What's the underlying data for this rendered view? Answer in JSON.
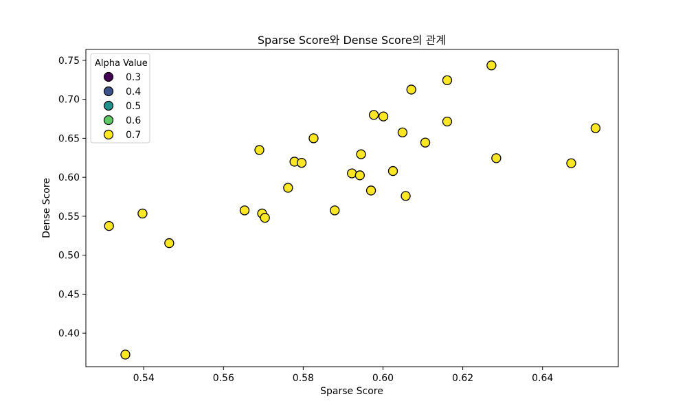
{
  "chart_data": {
    "type": "scatter",
    "title": "Sparse Score와 Dense Score의 관계",
    "xlabel": "Sparse Score",
    "ylabel": "Dense Score",
    "xlim": [
      0.5255,
      0.659
    ],
    "ylim": [
      0.357,
      0.764
    ],
    "xticks": [
      0.54,
      0.56,
      0.58,
      0.6,
      0.62,
      0.64
    ],
    "xtick_labels": [
      "0.54",
      "0.56",
      "0.58",
      "0.60",
      "0.62",
      "0.64"
    ],
    "yticks": [
      0.4,
      0.45,
      0.5,
      0.55,
      0.6,
      0.65,
      0.7,
      0.75
    ],
    "ytick_labels": [
      "0.40",
      "0.45",
      "0.50",
      "0.55",
      "0.60",
      "0.65",
      "0.70",
      "0.75"
    ],
    "grid": false,
    "legend": {
      "title": "Alpha Value",
      "placement": "top-left",
      "entries": [
        {
          "label": "0.3",
          "color": "#440154"
        },
        {
          "label": "0.4",
          "color": "#3b528b"
        },
        {
          "label": "0.5",
          "color": "#21918c"
        },
        {
          "label": "0.6",
          "color": "#5ec962"
        },
        {
          "label": "0.7",
          "color": "#fde725"
        }
      ]
    },
    "series": [
      {
        "name": "0.7",
        "color": "#fde725",
        "points": [
          [
            0.5313,
            0.5375
          ],
          [
            0.5354,
            0.3725
          ],
          [
            0.5397,
            0.5535
          ],
          [
            0.5464,
            0.5155
          ],
          [
            0.5653,
            0.5575
          ],
          [
            0.569,
            0.635
          ],
          [
            0.5697,
            0.5535
          ],
          [
            0.5704,
            0.548
          ],
          [
            0.5762,
            0.5865
          ],
          [
            0.5778,
            0.62
          ],
          [
            0.5796,
            0.6185
          ],
          [
            0.5826,
            0.65
          ],
          [
            0.5879,
            0.5575
          ],
          [
            0.5922,
            0.605
          ],
          [
            0.5942,
            0.6025
          ],
          [
            0.5945,
            0.6295
          ],
          [
            0.597,
            0.583
          ],
          [
            0.5977,
            0.68
          ],
          [
            0.6001,
            0.678
          ],
          [
            0.6025,
            0.608
          ],
          [
            0.6049,
            0.6575
          ],
          [
            0.6057,
            0.576
          ],
          [
            0.6071,
            0.7125
          ],
          [
            0.6106,
            0.6445
          ],
          [
            0.6161,
            0.6715
          ],
          [
            0.6161,
            0.7245
          ],
          [
            0.6272,
            0.7435
          ],
          [
            0.6284,
            0.6245
          ],
          [
            0.6472,
            0.618
          ],
          [
            0.6533,
            0.663
          ]
        ]
      }
    ]
  }
}
